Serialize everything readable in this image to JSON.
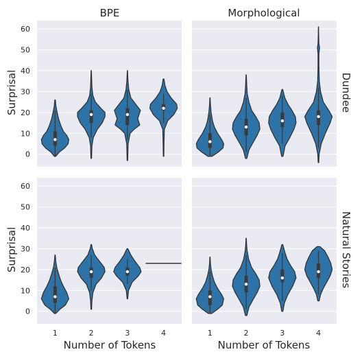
{
  "chart_data": {
    "type": "violin",
    "columns": [
      "BPE",
      "Morphological"
    ],
    "rows": [
      "Dundee",
      "Natural Stories"
    ],
    "xlabel": "Number of Tokens",
    "ylabel": "Surprisal",
    "categories": [
      "1",
      "2",
      "3",
      "4"
    ],
    "yticks": [
      0,
      10,
      20,
      30,
      40,
      50,
      60
    ],
    "ylim": [
      -6,
      64
    ],
    "grid": true,
    "colors": {
      "violin": "#2d73a8",
      "background": "#eaeaf2",
      "grid": "#ffffff",
      "outline": "#333333"
    },
    "panels": [
      {
        "row": "Dundee",
        "col": "BPE",
        "violins": [
          {
            "category": "1",
            "min": -1,
            "max": 26,
            "q1": 4,
            "median": 7,
            "q3": 11,
            "whisker_low": -1,
            "whisker_high": 21,
            "profile": [
              [
                -1,
                0.05
              ],
              [
                1,
                0.3
              ],
              [
                3,
                0.7
              ],
              [
                5,
                0.95
              ],
              [
                7,
                1.0
              ],
              [
                9,
                0.85
              ],
              [
                11,
                0.6
              ],
              [
                14,
                0.4
              ],
              [
                17,
                0.25
              ],
              [
                20,
                0.15
              ],
              [
                23,
                0.06
              ],
              [
                26,
                0.02
              ]
            ]
          },
          {
            "category": "2",
            "min": -2,
            "max": 40,
            "q1": 15,
            "median": 19,
            "q3": 21,
            "whisker_low": 8,
            "whisker_high": 29,
            "profile": [
              [
                -2,
                0.02
              ],
              [
                4,
                0.05
              ],
              [
                8,
                0.15
              ],
              [
                12,
                0.45
              ],
              [
                15,
                0.8
              ],
              [
                18,
                1.0
              ],
              [
                20,
                1.0
              ],
              [
                22,
                0.7
              ],
              [
                25,
                0.3
              ],
              [
                28,
                0.12
              ],
              [
                32,
                0.05
              ],
              [
                36,
                0.03
              ],
              [
                40,
                0.01
              ]
            ]
          },
          {
            "category": "3",
            "min": -3,
            "max": 40,
            "q1": 14,
            "median": 19,
            "q3": 22,
            "whisker_low": 7,
            "whisker_high": 31,
            "profile": [
              [
                -3,
                0.02
              ],
              [
                5,
                0.05
              ],
              [
                10,
                0.2
              ],
              [
                12,
                0.5
              ],
              [
                14,
                0.9
              ],
              [
                17,
                0.75
              ],
              [
                19,
                0.85
              ],
              [
                21,
                0.95
              ],
              [
                24,
                0.6
              ],
              [
                27,
                0.25
              ],
              [
                31,
                0.1
              ],
              [
                35,
                0.04
              ],
              [
                40,
                0.01
              ]
            ]
          },
          {
            "category": "4",
            "min": -1,
            "max": 36,
            "q1": 21,
            "median": 22,
            "q3": 24,
            "whisker_low": 15,
            "whisker_high": 29,
            "profile": [
              [
                -1,
                0.02
              ],
              [
                5,
                0.03
              ],
              [
                12,
                0.06
              ],
              [
                16,
                0.3
              ],
              [
                19,
                0.75
              ],
              [
                22,
                1.0
              ],
              [
                24,
                0.95
              ],
              [
                27,
                0.55
              ],
              [
                30,
                0.25
              ],
              [
                33,
                0.1
              ],
              [
                36,
                0.03
              ]
            ]
          }
        ]
      },
      {
        "row": "Dundee",
        "col": "Morphological",
        "violins": [
          {
            "category": "1",
            "min": -1,
            "max": 27,
            "q1": 3,
            "median": 6,
            "q3": 10,
            "whisker_low": -1,
            "whisker_high": 19,
            "profile": [
              [
                -1,
                0.15
              ],
              [
                1,
                0.6
              ],
              [
                3,
                0.95
              ],
              [
                5,
                1.0
              ],
              [
                7,
                0.85
              ],
              [
                10,
                0.55
              ],
              [
                13,
                0.32
              ],
              [
                16,
                0.18
              ],
              [
                20,
                0.08
              ],
              [
                24,
                0.03
              ],
              [
                27,
                0.01
              ]
            ]
          },
          {
            "category": "2",
            "min": -2,
            "max": 38,
            "q1": 9,
            "median": 13,
            "q3": 17,
            "whisker_low": 1,
            "whisker_high": 27,
            "profile": [
              [
                -2,
                0.05
              ],
              [
                2,
                0.2
              ],
              [
                5,
                0.45
              ],
              [
                9,
                0.8
              ],
              [
                12,
                1.0
              ],
              [
                15,
                0.95
              ],
              [
                18,
                0.7
              ],
              [
                21,
                0.4
              ],
              [
                25,
                0.2
              ],
              [
                29,
                0.08
              ],
              [
                33,
                0.04
              ],
              [
                38,
                0.01
              ]
            ]
          },
          {
            "category": "3",
            "min": -1,
            "max": 31,
            "q1": 13,
            "median": 16,
            "q3": 20,
            "whisker_low": 5,
            "whisker_high": 28,
            "profile": [
              [
                -1,
                0.05
              ],
              [
                4,
                0.2
              ],
              [
                8,
                0.55
              ],
              [
                12,
                0.85
              ],
              [
                15,
                1.0
              ],
              [
                18,
                0.95
              ],
              [
                21,
                0.7
              ],
              [
                24,
                0.4
              ],
              [
                27,
                0.18
              ],
              [
                31,
                0.03
              ]
            ]
          },
          {
            "category": "4",
            "min": -4,
            "max": 61,
            "q1": 14,
            "median": 18,
            "q3": 21,
            "whisker_low": 3,
            "whisker_high": 32,
            "profile": [
              [
                -4,
                0.02
              ],
              [
                0,
                0.05
              ],
              [
                5,
                0.2
              ],
              [
                10,
                0.5
              ],
              [
                15,
                0.85
              ],
              [
                18,
                1.0
              ],
              [
                21,
                0.75
              ],
              [
                25,
                0.35
              ],
              [
                30,
                0.15
              ],
              [
                35,
                0.06
              ],
              [
                42,
                0.03
              ],
              [
                48,
                0.03
              ],
              [
                51,
                0.08
              ],
              [
                53,
                0.03
              ],
              [
                57,
                0.015
              ],
              [
                61,
                0.005
              ]
            ]
          }
        ]
      },
      {
        "row": "Natural Stories",
        "col": "BPE",
        "violins": [
          {
            "category": "1",
            "min": -1,
            "max": 27,
            "q1": 4,
            "median": 7,
            "q3": 12,
            "whisker_low": -1,
            "whisker_high": 21,
            "profile": [
              [
                -1,
                0.05
              ],
              [
                1,
                0.35
              ],
              [
                3,
                0.75
              ],
              [
                6,
                1.0
              ],
              [
                9,
                0.85
              ],
              [
                12,
                0.6
              ],
              [
                15,
                0.4
              ],
              [
                18,
                0.25
              ],
              [
                21,
                0.12
              ],
              [
                24,
                0.05
              ],
              [
                27,
                0.01
              ]
            ]
          },
          {
            "category": "2",
            "min": 1,
            "max": 32,
            "q1": 16,
            "median": 19,
            "q3": 21,
            "whisker_low": 10,
            "whisker_high": 27,
            "profile": [
              [
                1,
                0.02
              ],
              [
                5,
                0.05
              ],
              [
                9,
                0.12
              ],
              [
                13,
                0.35
              ],
              [
                16,
                0.75
              ],
              [
                19,
                1.0
              ],
              [
                21,
                0.95
              ],
              [
                24,
                0.6
              ],
              [
                27,
                0.25
              ],
              [
                30,
                0.08
              ],
              [
                32,
                0.02
              ]
            ]
          },
          {
            "category": "3",
            "min": 6,
            "max": 30,
            "q1": 17,
            "median": 19,
            "q3": 21,
            "whisker_low": 13,
            "whisker_high": 25,
            "profile": [
              [
                6,
                0.02
              ],
              [
                10,
                0.08
              ],
              [
                14,
                0.35
              ],
              [
                17,
                0.8
              ],
              [
                19,
                1.0
              ],
              [
                21,
                0.9
              ],
              [
                24,
                0.55
              ],
              [
                27,
                0.25
              ],
              [
                30,
                0.03
              ]
            ]
          },
          {
            "category": "4",
            "min": 23,
            "max": 23,
            "single": true
          }
        ]
      },
      {
        "row": "Natural Stories",
        "col": "Morphological",
        "violins": [
          {
            "category": "1",
            "min": -1,
            "max": 26,
            "q1": 3,
            "median": 7,
            "q3": 10,
            "whisker_low": -1,
            "whisker_high": 19,
            "profile": [
              [
                -1,
                0.12
              ],
              [
                1,
                0.55
              ],
              [
                3,
                0.9
              ],
              [
                6,
                1.0
              ],
              [
                8,
                0.85
              ],
              [
                11,
                0.55
              ],
              [
                14,
                0.32
              ],
              [
                17,
                0.18
              ],
              [
                20,
                0.08
              ],
              [
                23,
                0.03
              ],
              [
                26,
                0.01
              ]
            ]
          },
          {
            "category": "2",
            "min": -2,
            "max": 35,
            "q1": 9,
            "median": 13,
            "q3": 17,
            "whisker_low": 1,
            "whisker_high": 27,
            "profile": [
              [
                -2,
                0.05
              ],
              [
                2,
                0.2
              ],
              [
                5,
                0.45
              ],
              [
                9,
                0.8
              ],
              [
                12,
                1.0
              ],
              [
                15,
                0.95
              ],
              [
                18,
                0.7
              ],
              [
                21,
                0.4
              ],
              [
                25,
                0.18
              ],
              [
                29,
                0.07
              ],
              [
                32,
                0.03
              ],
              [
                35,
                0.01
              ]
            ]
          },
          {
            "category": "3",
            "min": 0,
            "max": 32,
            "q1": 14,
            "median": 16,
            "q3": 20,
            "whisker_low": 5,
            "whisker_high": 28,
            "profile": [
              [
                0,
                0.04
              ],
              [
                4,
                0.15
              ],
              [
                8,
                0.4
              ],
              [
                12,
                0.75
              ],
              [
                16,
                1.0
              ],
              [
                19,
                0.9
              ],
              [
                22,
                0.6
              ],
              [
                25,
                0.35
              ],
              [
                28,
                0.2
              ],
              [
                32,
                0.03
              ]
            ]
          },
          {
            "category": "4",
            "min": 5,
            "max": 31,
            "q1": 16,
            "median": 19,
            "q3": 23,
            "whisker_low": 8,
            "whisker_high": 29,
            "profile": [
              [
                5,
                0.05
              ],
              [
                8,
                0.15
              ],
              [
                11,
                0.35
              ],
              [
                14,
                0.6
              ],
              [
                17,
                0.85
              ],
              [
                20,
                1.0
              ],
              [
                23,
                0.9
              ],
              [
                26,
                0.7
              ],
              [
                29,
                0.45
              ],
              [
                31,
                0.1
              ]
            ]
          }
        ]
      }
    ]
  }
}
